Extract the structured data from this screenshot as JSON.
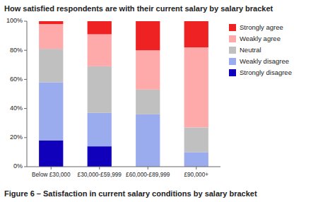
{
  "chart_data": {
    "type": "bar",
    "stacked": true,
    "title": "How satisfied respondents are with their current salary by salary bracket",
    "caption": "Figure 6 – Satisfaction in current salary conditions by salary bracket",
    "categories": [
      "Below £30,000",
      "£30,000-£59,999",
      "£60,000-£89,999",
      "£90,000+"
    ],
    "series": [
      {
        "name": "Strongly disagree",
        "color": "#1100BB",
        "values": [
          18,
          14,
          0,
          0
        ]
      },
      {
        "name": "Weakly disagree",
        "color": "#9AABEE",
        "values": [
          40,
          23,
          36,
          10
        ]
      },
      {
        "name": "Neutral",
        "color": "#C0C0C0",
        "values": [
          23,
          32,
          17,
          17
        ]
      },
      {
        "name": "Weakly agree",
        "color": "#FFAAAA",
        "values": [
          17,
          22,
          27,
          55
        ]
      },
      {
        "name": "Strongly agree",
        "color": "#EE2222",
        "values": [
          2,
          9,
          20,
          18
        ]
      }
    ],
    "ylim": [
      0,
      100
    ],
    "yticks": [
      {
        "value": 0,
        "label": "0%"
      },
      {
        "value": 20,
        "label": "20%"
      },
      {
        "value": 40,
        "label": "40%"
      },
      {
        "value": 60,
        "label": "60%"
      },
      {
        "value": 80,
        "label": "80%"
      },
      {
        "value": 100,
        "label": "100%"
      }
    ],
    "grid": false,
    "legend": "right"
  }
}
